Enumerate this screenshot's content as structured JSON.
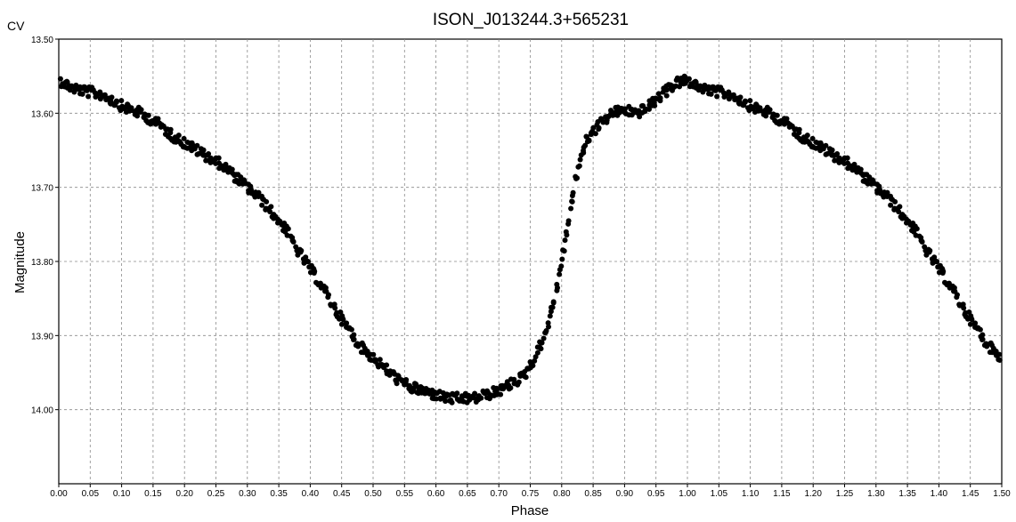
{
  "chart_data": {
    "type": "scatter",
    "title": "ISON_J013244.3+565231",
    "corner_label": "CV",
    "xlabel": "Phase",
    "ylabel": "Magnitude",
    "xlim": [
      0,
      1.5
    ],
    "ylim": [
      14.1,
      13.5
    ],
    "y_inverted": true,
    "grid": true,
    "x_ticks": [
      "0.00",
      "0.05",
      "0.10",
      "0.15",
      "0.20",
      "0.25",
      "0.30",
      "0.35",
      "0.40",
      "0.45",
      "0.50",
      "0.55",
      "0.60",
      "0.65",
      "0.70",
      "0.75",
      "0.80",
      "0.85",
      "0.90",
      "0.95",
      "1.00",
      "1.05",
      "1.10",
      "1.15",
      "1.20",
      "1.25",
      "1.30",
      "1.35",
      "1.40",
      "1.45",
      "1.50"
    ],
    "y_ticks": [
      "13.50",
      "13.60",
      "13.70",
      "13.80",
      "13.90",
      "14.00"
    ],
    "marker_color": "#000000",
    "series": [
      {
        "phase_lightcurve": [
          [
            0.0,
            13.555
          ],
          [
            0.02,
            13.565
          ],
          [
            0.04,
            13.57
          ],
          [
            0.07,
            13.575
          ],
          [
            0.1,
            13.59
          ],
          [
            0.13,
            13.6
          ],
          [
            0.16,
            13.615
          ],
          [
            0.18,
            13.63
          ],
          [
            0.2,
            13.64
          ],
          [
            0.22,
            13.65
          ],
          [
            0.24,
            13.66
          ],
          [
            0.26,
            13.67
          ],
          [
            0.28,
            13.685
          ],
          [
            0.3,
            13.7
          ],
          [
            0.32,
            13.715
          ],
          [
            0.34,
            13.735
          ],
          [
            0.36,
            13.755
          ],
          [
            0.38,
            13.785
          ],
          [
            0.4,
            13.81
          ],
          [
            0.42,
            13.835
          ],
          [
            0.44,
            13.865
          ],
          [
            0.46,
            13.89
          ],
          [
            0.48,
            13.915
          ],
          [
            0.5,
            13.93
          ],
          [
            0.52,
            13.945
          ],
          [
            0.54,
            13.96
          ],
          [
            0.56,
            13.97
          ],
          [
            0.58,
            13.975
          ],
          [
            0.6,
            13.98
          ],
          [
            0.62,
            13.985
          ],
          [
            0.64,
            13.985
          ],
          [
            0.66,
            13.985
          ],
          [
            0.68,
            13.98
          ],
          [
            0.7,
            13.975
          ],
          [
            0.72,
            13.965
          ],
          [
            0.74,
            13.955
          ],
          [
            0.75,
            13.94
          ],
          [
            0.76,
            13.925
          ],
          [
            0.77,
            13.905
          ],
          [
            0.78,
            13.88
          ],
          [
            0.79,
            13.845
          ],
          [
            0.8,
            13.8
          ],
          [
            0.81,
            13.75
          ],
          [
            0.82,
            13.7
          ],
          [
            0.83,
            13.66
          ],
          [
            0.84,
            13.635
          ],
          [
            0.86,
            13.615
          ],
          [
            0.88,
            13.6
          ],
          [
            0.9,
            13.595
          ],
          [
            0.92,
            13.6
          ],
          [
            0.94,
            13.59
          ],
          [
            0.96,
            13.575
          ],
          [
            0.98,
            13.56
          ],
          [
            1.0,
            13.555
          ]
        ]
      }
    ]
  }
}
